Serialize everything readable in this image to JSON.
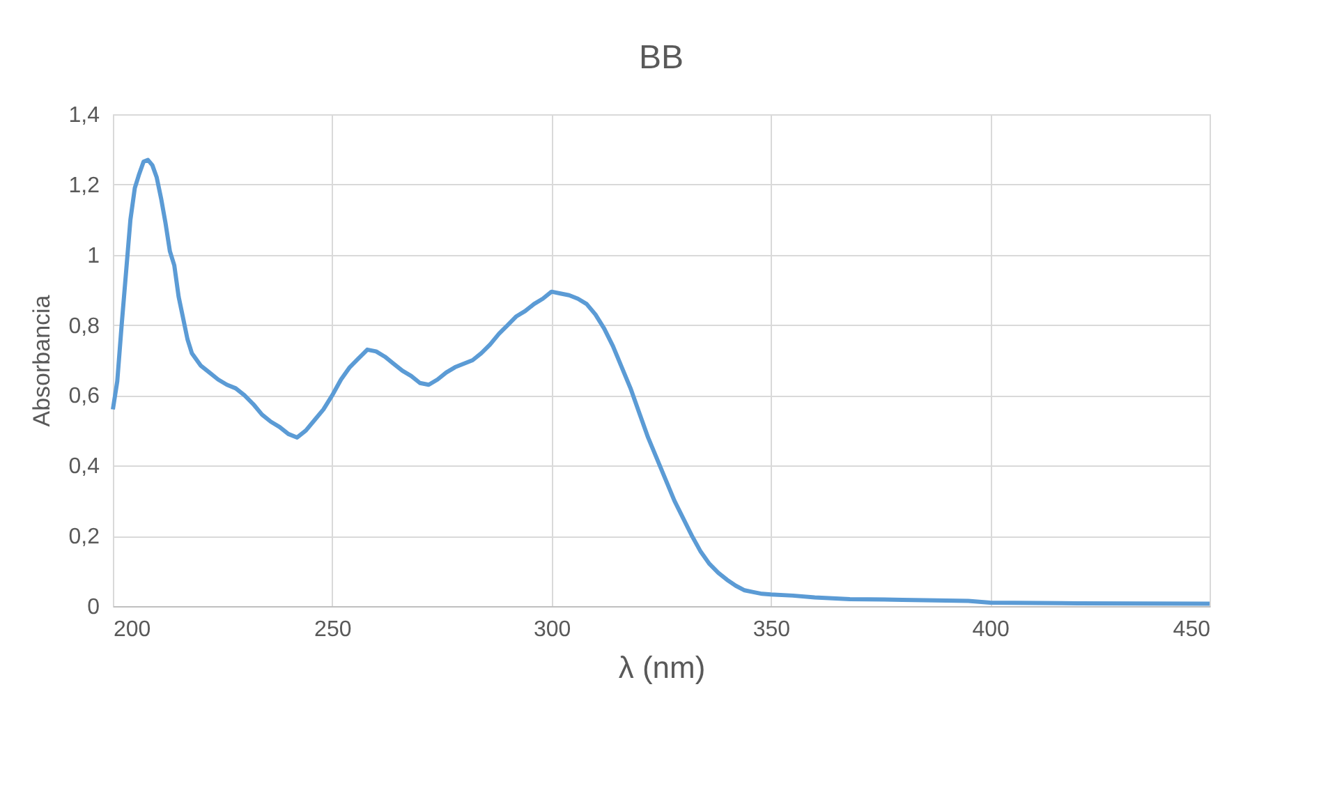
{
  "chart_data": {
    "type": "line",
    "title": "BB",
    "xlabel": "λ (nm)",
    "ylabel": "Absorbancia",
    "xlim": [
      200,
      450
    ],
    "xticks": [
      200,
      250,
      300,
      350,
      400,
      450
    ],
    "ylim": [
      0,
      1.4
    ],
    "yticks": [
      0,
      {
        "value": 0.2,
        "label": "0,2"
      },
      {
        "value": 0.4,
        "label": "0,4"
      },
      {
        "value": 0.6,
        "label": "0,6"
      },
      {
        "value": 0.8,
        "label": "0,8"
      },
      1,
      {
        "value": 1.2,
        "label": "1,2"
      },
      {
        "value": 1.4,
        "label": "1,4"
      }
    ],
    "grid": true,
    "marker": "none",
    "line_style": "solid",
    "series": [
      {
        "color": "#5b9bd5",
        "x": [
          200,
          201,
          202,
          203,
          204,
          205,
          206,
          207,
          208,
          209,
          210,
          211,
          212,
          213,
          214,
          215,
          216,
          217,
          218,
          220,
          222,
          224,
          226,
          228,
          230,
          232,
          234,
          236,
          238,
          240,
          242,
          244,
          246,
          248,
          250,
          252,
          254,
          256,
          258,
          260,
          262,
          264,
          266,
          268,
          270,
          272,
          274,
          276,
          278,
          280,
          282,
          284,
          286,
          288,
          290,
          292,
          294,
          296,
          298,
          300,
          302,
          304,
          306,
          308,
          310,
          312,
          314,
          316,
          318,
          320,
          322,
          324,
          326,
          328,
          330,
          332,
          334,
          336,
          338,
          340,
          342,
          344,
          346,
          348,
          350,
          355,
          360,
          368,
          380,
          395,
          400,
          420,
          450
        ],
        "values": [
          0.56,
          0.64,
          0.8,
          0.95,
          1.1,
          1.19,
          1.23,
          1.265,
          1.27,
          1.255,
          1.22,
          1.16,
          1.09,
          1.01,
          0.97,
          0.88,
          0.82,
          0.76,
          0.72,
          0.685,
          0.665,
          0.645,
          0.63,
          0.62,
          0.6,
          0.575,
          0.545,
          0.525,
          0.51,
          0.49,
          0.48,
          0.5,
          0.53,
          0.56,
          0.6,
          0.645,
          0.68,
          0.705,
          0.73,
          0.725,
          0.71,
          0.69,
          0.67,
          0.655,
          0.635,
          0.63,
          0.645,
          0.665,
          0.68,
          0.69,
          0.7,
          0.72,
          0.745,
          0.775,
          0.8,
          0.825,
          0.84,
          0.86,
          0.875,
          0.895,
          0.89,
          0.885,
          0.875,
          0.86,
          0.83,
          0.79,
          0.74,
          0.68,
          0.62,
          0.55,
          0.48,
          0.42,
          0.36,
          0.3,
          0.25,
          0.2,
          0.155,
          0.12,
          0.095,
          0.075,
          0.058,
          0.045,
          0.04,
          0.035,
          0.033,
          0.03,
          0.025,
          0.02,
          0.018,
          0.015,
          0.01,
          0.008,
          0.007
        ]
      }
    ]
  }
}
